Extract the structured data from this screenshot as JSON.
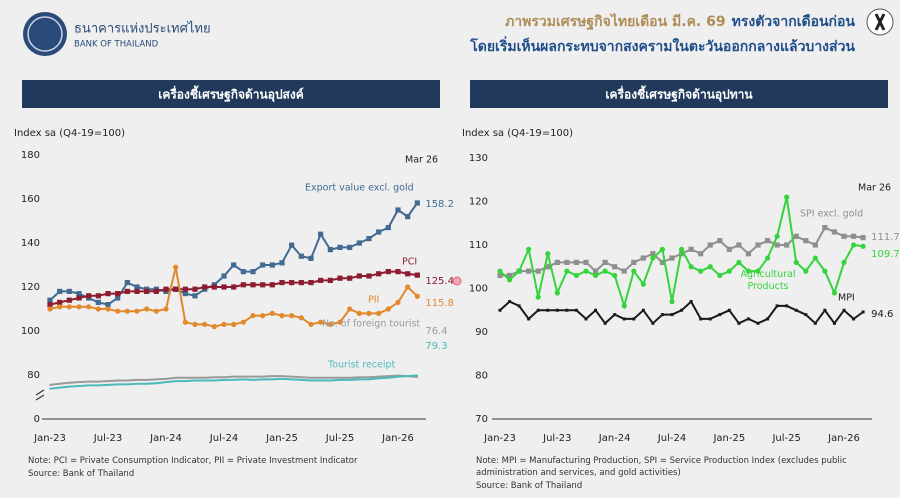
{
  "header": {
    "org_th": "ธนาคารแห่งประเทศไทย",
    "org_en": "BANK OF THAILAND",
    "title_part1": "ภาพรวมเศรษฐกิจไทยเดือน มี.ค. 69",
    "title_part2": "ทรงตัวจากเดือนก่อน",
    "title_line2": "โดยเริ่มเห็นผลกระทบจากสงครามในตะวันออกกลางแล้วบางส่วน"
  },
  "chart_data": [
    {
      "type": "line",
      "title": "เครื่องชี้เศรษฐกิจด้านอุปสงค์",
      "y_label": "Index sa (Q4-19=100)",
      "annotation": "Mar 26",
      "categories": [
        "Jan-23",
        null,
        null,
        null,
        null,
        null,
        "Jul-23",
        null,
        null,
        null,
        null,
        null,
        "Jan-24",
        null,
        null,
        null,
        null,
        null,
        "Jul-24",
        null,
        null,
        null,
        null,
        null,
        "Jan-25",
        null,
        null,
        null,
        null,
        null,
        "Jul-25",
        null,
        null,
        null,
        null,
        null,
        "Jan-26",
        null,
        null
      ],
      "ylim": [
        0,
        180
      ],
      "yticks": [
        0,
        80,
        100,
        120,
        140,
        160,
        180
      ],
      "axis_break": true,
      "grid": false,
      "series": [
        {
          "name": "Export value excl. gold",
          "color": "#416b92",
          "marker": "square",
          "values": [
            114,
            118,
            118,
            117,
            115,
            113,
            112,
            115,
            122,
            120,
            119,
            119,
            118,
            119,
            117,
            116,
            119,
            121,
            125,
            130,
            127,
            127,
            130,
            130,
            131,
            139,
            134,
            133,
            144,
            137,
            138,
            138,
            140,
            142,
            145,
            147,
            155,
            152,
            158.2
          ]
        },
        {
          "name": "PCI",
          "color": "#8c1c30",
          "marker": "square",
          "values": [
            112,
            113,
            114,
            115,
            116,
            116,
            117,
            117,
            118,
            118,
            118,
            118,
            119,
            119,
            119,
            119,
            120,
            120,
            120,
            120,
            121,
            121,
            121,
            121,
            122,
            122,
            122,
            122,
            123,
            123,
            124,
            124,
            125,
            125,
            126,
            127,
            127,
            126,
            125.4
          ]
        },
        {
          "name": "PII",
          "color": "#e2892b",
          "marker": "circle",
          "values": [
            110,
            111,
            111,
            111,
            111,
            110,
            110,
            109,
            109,
            109,
            110,
            109,
            110,
            129,
            104,
            103,
            103,
            102,
            103,
            103,
            104,
            107,
            107,
            108,
            107,
            107,
            106,
            103,
            104,
            103,
            104,
            110,
            108,
            108,
            108,
            110,
            113,
            120,
            115.8
          ]
        },
        {
          "name": "No. of foreign tourist",
          "color": "#9a9a9a",
          "marker": "none",
          "values": [
            62,
            64,
            66,
            67,
            68,
            68,
            69,
            70,
            70,
            71,
            71,
            72,
            73,
            75,
            75,
            75,
            75,
            76,
            76,
            77,
            77,
            77,
            77,
            78,
            78,
            77,
            76,
            75,
            75,
            75,
            75,
            75,
            76,
            76,
            77,
            78,
            79,
            78,
            76.4
          ]
        },
        {
          "name": "Tourist receipt",
          "color": "#4cb9bb",
          "marker": "none",
          "values": [
            55,
            57,
            59,
            60,
            61,
            61,
            62,
            63,
            63,
            64,
            64,
            65,
            67,
            69,
            69,
            70,
            70,
            70,
            71,
            71,
            72,
            71,
            72,
            72,
            73,
            72,
            71,
            70,
            70,
            70,
            71,
            71,
            72,
            72,
            74,
            75,
            77,
            78,
            79.3
          ]
        }
      ],
      "note": "Note: PCI = Private Consumption Indicator, PII = Private Investment Indicator",
      "source": "Source: Bank of Thailand"
    },
    {
      "type": "line",
      "title": "เครื่องชี้เศรษฐกิจด้านอุปทาน",
      "y_label": "Index sa (Q4-19=100)",
      "annotation": "Mar 26",
      "categories": [
        "Jan-23",
        null,
        null,
        null,
        null,
        null,
        "Jul-23",
        null,
        null,
        null,
        null,
        null,
        "Jan-24",
        null,
        null,
        null,
        null,
        null,
        "Jul-24",
        null,
        null,
        null,
        null,
        null,
        "Jan-25",
        null,
        null,
        null,
        null,
        null,
        "Jul-25",
        null,
        null,
        null,
        null,
        null,
        "Jan-26",
        null,
        null
      ],
      "ylim": [
        70,
        130
      ],
      "yticks": [
        70,
        80,
        90,
        100,
        110,
        120,
        130
      ],
      "axis_break": false,
      "grid": false,
      "series": [
        {
          "name": "SPI excl. gold",
          "color": "#8f8f8f",
          "marker": "square",
          "values": [
            103,
            103,
            104,
            104,
            104,
            105,
            106,
            106,
            106,
            106,
            104,
            106,
            105,
            104,
            106,
            107,
            108,
            106,
            107,
            108,
            109,
            108,
            110,
            111,
            109,
            110,
            108,
            110,
            111,
            110,
            110,
            112,
            111,
            110,
            114,
            113,
            112,
            112,
            111.7
          ]
        },
        {
          "name": "Agricultural Products",
          "color": "#35d43c",
          "marker": "circle",
          "values": [
            104,
            102,
            104,
            109,
            98,
            108,
            99,
            104,
            103,
            104,
            103,
            104,
            103,
            96,
            104,
            101,
            107,
            109,
            97,
            109,
            105,
            104,
            105,
            103,
            104,
            106,
            104,
            104,
            107,
            112,
            121,
            106,
            104,
            107,
            104,
            99,
            106,
            110,
            109.7
          ]
        },
        {
          "name": "MPI",
          "color": "#1a1a1a",
          "marker": "small",
          "values": [
            95,
            97,
            96,
            93,
            95,
            95,
            95,
            95,
            95,
            93,
            95,
            92,
            94,
            93,
            93,
            95,
            92,
            94,
            94,
            95,
            97,
            93,
            93,
            94,
            95,
            92,
            93,
            92,
            93,
            96,
            96,
            95,
            94,
            92,
            95,
            92,
            95,
            93,
            94.6
          ]
        }
      ],
      "note": "Note: MPI = Manufacturing Production, SPI = Service Production Index (excludes public administration and services, and gold activities)",
      "source": "Source: Bank of Thailand"
    }
  ]
}
